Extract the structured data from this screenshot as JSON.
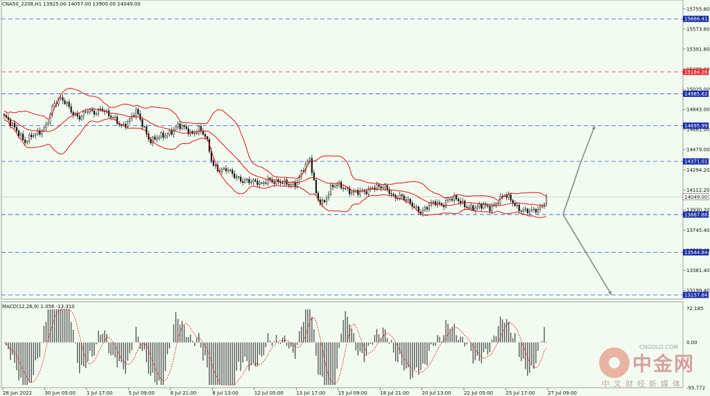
{
  "chart_data": {
    "type": "candlestick",
    "header": {
      "symbol_line": "CNA50_2208,H1  13925.00 14057.00 13900.00 14049.00"
    },
    "price_axis": {
      "ticks": [
        "15755.80",
        "15573.80",
        "15391.80",
        "15209.80",
        "15025.00",
        "14843.00",
        "14661.00",
        "14479.00",
        "14294.20",
        "14112.20",
        "13930.20",
        "13745.40",
        "13563.40",
        "13381.40",
        "13199.40"
      ],
      "ylim": [
        13120,
        15800
      ]
    },
    "levels": [
      {
        "label": "15666.41",
        "color": "#2f4bd6"
      },
      {
        "label": "15184.26",
        "color": "#e03030"
      },
      {
        "label": "14985.62",
        "color": "#2f4bd6"
      },
      {
        "label": "14695.99",
        "color": "#2f4bd6"
      },
      {
        "label": "14371.01",
        "color": "#2f4bd6"
      },
      {
        "label": "14049.00",
        "color": "#111111"
      },
      {
        "label": "13887.88",
        "color": "#2f4bd6"
      },
      {
        "label": "13544.84",
        "color": "#2f4bd6"
      },
      {
        "label": "13157.84",
        "color": "#2f4bd6"
      }
    ],
    "level_values": [
      15666.41,
      15184.26,
      14985.62,
      14695.99,
      14371.01,
      14049.0,
      13887.88,
      13544.84,
      13157.84
    ],
    "x_labels": [
      "28 Jun 2022",
      "30 Jun 05:00",
      "1 Jul 17:00",
      "5 Jul 09:00",
      "6 Jul 21:00",
      "8 Jul 13:00",
      "12 Jul 05:00",
      "13 Jul 17:00",
      "15 Jul 09:00",
      "18 Jul 21:00",
      "20 Jul 13:00",
      "22 Jul 05:00",
      "25 Jul 17:00",
      "27 Jul 09:00"
    ],
    "close_path": [
      14780,
      14700,
      14640,
      14560,
      14600,
      14620,
      14700,
      14880,
      14930,
      14900,
      14810,
      14760,
      14830,
      14820,
      14860,
      14780,
      14750,
      14700,
      14740,
      14820,
      14700,
      14560,
      14580,
      14600,
      14650,
      14700,
      14660,
      14620,
      14680,
      14590,
      14330,
      14300,
      14310,
      14230,
      14200,
      14210,
      14180,
      14150,
      14220,
      14190,
      14170,
      14160,
      14180,
      14300,
      14380,
      14040,
      14000,
      14120,
      14160,
      14140,
      14090,
      14080,
      14100,
      14150,
      14130,
      14120,
      14060,
      14060,
      14000,
      13960,
      13920,
      13960,
      13990,
      13980,
      14040,
      14020,
      13980,
      13960,
      13950,
      13960,
      13950,
      14020,
      14060,
      14010,
      13950,
      13920,
      13910,
      13940,
      14049
    ],
    "bollinger": {
      "period": 20
    },
    "projection": {
      "up_targets": [
        14371.01,
        14695.99
      ],
      "down_targets": [
        13544.84,
        13157.84
      ]
    },
    "macd": {
      "label": "MACD(12,26,9) 1.056 -13.310",
      "ticks": [
        "72.185",
        "0.00",
        "-95.772"
      ],
      "ylim": [
        -95.772,
        80
      ]
    },
    "colors": {
      "background": "#f2fbf0",
      "candle": "#111111",
      "band": "#e01010",
      "level_blue": "#2f4bd6",
      "level_red": "#e03030",
      "arrow": "#8a8a8a"
    }
  },
  "watermark": {
    "brand_cn": "中金网",
    "brand_en": "CNGOLD.COM",
    "tagline": "中文财经新媒体"
  }
}
